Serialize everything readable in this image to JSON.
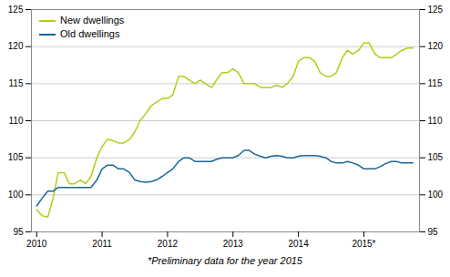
{
  "chart_data": {
    "type": "line",
    "x": [
      2010.0,
      2010.08,
      2010.17,
      2010.25,
      2010.33,
      2010.42,
      2010.5,
      2010.58,
      2010.67,
      2010.75,
      2010.83,
      2010.92,
      2011.0,
      2011.08,
      2011.17,
      2011.25,
      2011.33,
      2011.42,
      2011.5,
      2011.58,
      2011.67,
      2011.75,
      2011.83,
      2011.92,
      2012.0,
      2012.08,
      2012.17,
      2012.25,
      2012.33,
      2012.42,
      2012.5,
      2012.58,
      2012.67,
      2012.75,
      2012.83,
      2012.92,
      2013.0,
      2013.08,
      2013.17,
      2013.25,
      2013.33,
      2013.42,
      2013.5,
      2013.58,
      2013.67,
      2013.75,
      2013.83,
      2013.92,
      2014.0,
      2014.08,
      2014.17,
      2014.25,
      2014.33,
      2014.42,
      2014.5,
      2014.58,
      2014.67,
      2014.75,
      2014.83,
      2014.92,
      2015.0,
      2015.08,
      2015.17,
      2015.25,
      2015.33,
      2015.42,
      2015.5,
      2015.58,
      2015.67,
      2015.75
    ],
    "series": [
      {
        "name": "New dwellings",
        "color": "#b5cc18",
        "values": [
          98.0,
          97.2,
          97.0,
          99.5,
          103.0,
          103.0,
          101.5,
          101.5,
          102.0,
          101.5,
          102.5,
          105.0,
          106.5,
          107.5,
          107.3,
          107.0,
          107.0,
          107.5,
          108.5,
          110.0,
          111.0,
          112.0,
          112.5,
          113.0,
          113.0,
          113.5,
          116.0,
          116.0,
          115.5,
          115.0,
          115.5,
          115.0,
          114.5,
          115.5,
          116.5,
          116.5,
          117.0,
          116.5,
          115.0,
          115.0,
          115.0,
          114.5,
          114.5,
          114.5,
          114.8,
          114.5,
          115.0,
          116.0,
          118.0,
          118.5,
          118.5,
          118.0,
          116.5,
          116.0,
          116.0,
          116.5,
          118.5,
          119.5,
          119.0,
          119.5,
          120.5,
          120.5,
          119.0,
          118.5,
          118.5,
          118.5,
          119.0,
          119.5,
          119.8,
          119.8
        ]
      },
      {
        "name": "Old dwellings",
        "color": "#1a6699",
        "values": [
          98.5,
          99.5,
          100.5,
          100.5,
          101.0,
          101.0,
          101.0,
          101.0,
          101.0,
          101.0,
          101.0,
          102.0,
          103.5,
          104.0,
          104.0,
          103.5,
          103.5,
          103.0,
          102.0,
          101.8,
          101.7,
          101.8,
          102.0,
          102.5,
          103.0,
          103.5,
          104.5,
          105.0,
          105.0,
          104.5,
          104.5,
          104.5,
          104.5,
          104.8,
          105.0,
          105.0,
          105.0,
          105.3,
          106.0,
          106.0,
          105.5,
          105.2,
          105.0,
          105.2,
          105.3,
          105.2,
          105.0,
          105.0,
          105.2,
          105.3,
          105.3,
          105.3,
          105.2,
          105.0,
          104.5,
          104.3,
          104.3,
          104.5,
          104.3,
          104.0,
          103.5,
          103.5,
          103.5,
          103.8,
          104.2,
          104.5,
          104.5,
          104.3,
          104.3,
          104.3
        ]
      }
    ],
    "xlim": [
      2009.92,
      2015.85
    ],
    "xticks": [
      2010.0,
      2011.0,
      2012.0,
      2013.0,
      2014.0,
      {
        "value": 2015.0,
        "label": "2015*"
      }
    ],
    "ylim": [
      95,
      125
    ],
    "yticks": [
      95,
      100,
      105,
      110,
      115,
      120,
      125
    ],
    "grid": true,
    "legend": "upper left",
    "annotations": [
      "*Preliminary data for the year 2015"
    ]
  }
}
